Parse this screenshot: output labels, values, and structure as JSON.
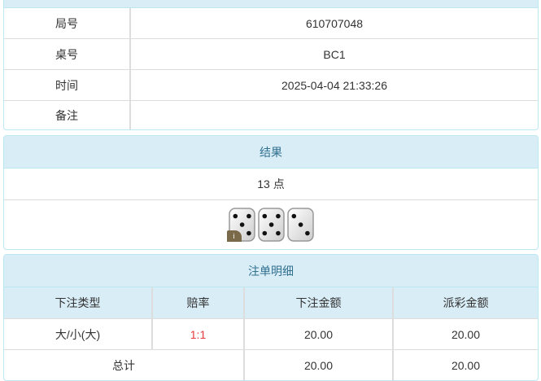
{
  "info": {
    "rows": [
      {
        "label": "局号",
        "value": "610707048"
      },
      {
        "label": "桌号",
        "value": "BC1"
      },
      {
        "label": "时间",
        "value": "2025-04-04 21:33:26"
      },
      {
        "label": "备注",
        "value": ""
      }
    ]
  },
  "result": {
    "title": "结果",
    "points": "13 点",
    "dice": [
      5,
      5,
      3
    ],
    "badge": "i"
  },
  "bets": {
    "title": "注单明细",
    "headers": [
      "下注类型",
      "赔率",
      "下注金额",
      "派彩金额"
    ],
    "rows": [
      {
        "type": "大/小(大)",
        "odds": "1:1",
        "amount": "20.00",
        "payout": "20.00"
      }
    ],
    "total": {
      "label": "总计",
      "amount": "20.00",
      "payout": "20.00"
    }
  },
  "colors": {
    "header_bg": "#d9edf7",
    "header_text": "#31708f",
    "odds": "#e4393c"
  }
}
